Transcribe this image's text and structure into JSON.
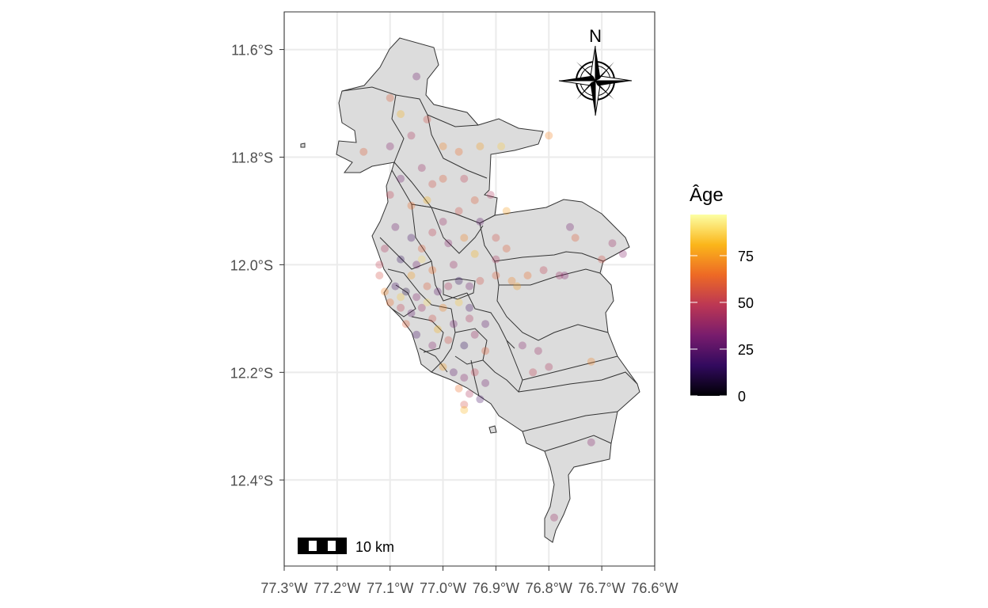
{
  "map": {
    "x_ticks": [
      "77.3°W",
      "77.2°W",
      "77.1°W",
      "77.0°W",
      "76.9°W",
      "76.8°W",
      "76.7°W",
      "76.6°W"
    ],
    "y_ticks": [
      "11.6°S",
      "11.8°S",
      "12.0°S",
      "12.2°S",
      "12.4°S"
    ],
    "north_label": "N",
    "scale_bar_label": "10 km",
    "region_fill": "#dcdcdc",
    "region_stroke": "#333333",
    "grid_color": "#ebebeb"
  },
  "legend": {
    "title": "Âge",
    "labels": [
      "0",
      "25",
      "50",
      "75"
    ],
    "values": [
      0,
      25,
      50,
      75
    ],
    "range": [
      0,
      97
    ],
    "colors": [
      "#000004",
      "#320a5e",
      "#781c6d",
      "#bc3754",
      "#ed6925",
      "#fbb61a",
      "#fcffa4"
    ]
  },
  "chart_data": {
    "type": "scatter",
    "xlabel": "",
    "ylabel": "",
    "x_unit": "degrees longitude",
    "y_unit": "degrees latitude",
    "xlim": [
      -77.3,
      -76.6
    ],
    "ylim": [
      -12.56,
      -11.53
    ],
    "color_variable": "Âge",
    "points": [
      [
        -77.05,
        -11.65,
        30
      ],
      [
        -77.03,
        -11.73,
        55
      ],
      [
        -77.1,
        -11.69,
        60
      ],
      [
        -77.08,
        -11.72,
        80
      ],
      [
        -77.06,
        -11.76,
        45
      ],
      [
        -77.1,
        -11.78,
        35
      ],
      [
        -77.0,
        -11.78,
        70
      ],
      [
        -76.97,
        -11.79,
        65
      ],
      [
        -76.93,
        -11.78,
        75
      ],
      [
        -76.89,
        -11.78,
        85
      ],
      [
        -76.8,
        -11.76,
        70
      ],
      [
        -77.04,
        -11.82,
        40
      ],
      [
        -77.02,
        -11.85,
        55
      ],
      [
        -77.0,
        -11.84,
        60
      ],
      [
        -76.96,
        -11.84,
        50
      ],
      [
        -77.15,
        -11.79,
        60
      ],
      [
        -77.08,
        -11.84,
        30
      ],
      [
        -77.1,
        -11.87,
        50
      ],
      [
        -77.06,
        -11.89,
        65
      ],
      [
        -77.03,
        -11.88,
        80
      ],
      [
        -77.0,
        -11.92,
        40
      ],
      [
        -76.97,
        -11.9,
        55
      ],
      [
        -76.94,
        -11.88,
        60
      ],
      [
        -76.91,
        -11.87,
        45
      ],
      [
        -76.88,
        -11.9,
        75
      ],
      [
        -77.09,
        -11.93,
        30
      ],
      [
        -77.06,
        -11.95,
        20
      ],
      [
        -77.04,
        -11.97,
        60
      ],
      [
        -77.02,
        -11.94,
        50
      ],
      [
        -76.99,
        -11.96,
        35
      ],
      [
        -76.96,
        -11.95,
        70
      ],
      [
        -76.93,
        -11.92,
        25
      ],
      [
        -76.9,
        -11.95,
        55
      ],
      [
        -77.11,
        -11.97,
        45
      ],
      [
        -77.08,
        -11.99,
        15
      ],
      [
        -77.05,
        -12.0,
        30
      ],
      [
        -77.02,
        -12.01,
        65
      ],
      [
        -76.98,
        -12.0,
        40
      ],
      [
        -76.94,
        -11.98,
        80
      ],
      [
        -76.88,
        -11.97,
        60
      ],
      [
        -77.12,
        -12.02,
        55
      ],
      [
        -77.09,
        -12.04,
        20
      ],
      [
        -77.07,
        -12.05,
        10
      ],
      [
        -77.05,
        -12.06,
        35
      ],
      [
        -77.03,
        -12.04,
        60
      ],
      [
        -77.01,
        -12.05,
        25
      ],
      [
        -76.99,
        -12.04,
        45
      ],
      [
        -76.97,
        -12.03,
        15
      ],
      [
        -76.95,
        -12.04,
        30
      ],
      [
        -76.93,
        -12.03,
        55
      ],
      [
        -76.9,
        -12.02,
        60
      ],
      [
        -76.87,
        -12.03,
        70
      ],
      [
        -76.84,
        -12.02,
        65
      ],
      [
        -76.81,
        -12.01,
        50
      ],
      [
        -76.78,
        -12.02,
        40
      ],
      [
        -77.1,
        -12.07,
        65
      ],
      [
        -77.08,
        -12.08,
        50
      ],
      [
        -77.06,
        -12.09,
        25
      ],
      [
        -77.04,
        -12.08,
        40
      ],
      [
        -77.02,
        -12.1,
        55
      ],
      [
        -77.0,
        -12.08,
        70
      ],
      [
        -76.98,
        -12.11,
        30
      ],
      [
        -76.95,
        -12.1,
        45
      ],
      [
        -76.92,
        -12.11,
        25
      ],
      [
        -77.07,
        -12.11,
        60
      ],
      [
        -77.05,
        -12.13,
        20
      ],
      [
        -77.02,
        -12.15,
        35
      ],
      [
        -76.99,
        -12.14,
        55
      ],
      [
        -76.96,
        -12.15,
        15
      ],
      [
        -76.94,
        -12.13,
        40
      ],
      [
        -76.92,
        -12.16,
        60
      ],
      [
        -77.0,
        -12.19,
        75
      ],
      [
        -76.98,
        -12.2,
        25
      ],
      [
        -76.96,
        -12.21,
        35
      ],
      [
        -76.94,
        -12.2,
        50
      ],
      [
        -76.92,
        -12.22,
        30
      ],
      [
        -76.97,
        -12.23,
        65
      ],
      [
        -76.95,
        -12.24,
        45
      ],
      [
        -76.93,
        -12.25,
        20
      ],
      [
        -76.96,
        -12.26,
        55
      ],
      [
        -76.85,
        -12.15,
        35
      ],
      [
        -76.82,
        -12.16,
        40
      ],
      [
        -76.8,
        -12.19,
        45
      ],
      [
        -76.83,
        -12.2,
        50
      ],
      [
        -76.77,
        -12.02,
        35
      ],
      [
        -76.7,
        -11.99,
        55
      ],
      [
        -76.75,
        -11.95,
        60
      ],
      [
        -76.68,
        -11.96,
        40
      ],
      [
        -76.66,
        -11.98,
        35
      ],
      [
        -76.72,
        -12.18,
        70
      ],
      [
        -76.72,
        -12.33,
        35
      ],
      [
        -76.79,
        -12.47,
        40
      ],
      [
        -76.76,
        -11.93,
        30
      ],
      [
        -76.9,
        -11.99,
        45
      ],
      [
        -77.11,
        -12.05,
        70
      ],
      [
        -77.08,
        -12.06,
        85
      ],
      [
        -77.03,
        -12.07,
        90
      ],
      [
        -77.01,
        -12.12,
        80
      ],
      [
        -76.97,
        -12.07,
        85
      ],
      [
        -76.95,
        -12.08,
        20
      ],
      [
        -77.04,
        -11.99,
        90
      ],
      [
        -77.06,
        -12.02,
        75
      ],
      [
        -76.96,
        -12.27,
        80
      ],
      [
        -76.86,
        -12.04,
        75
      ],
      [
        -77.12,
        -12.0,
        50
      ]
    ]
  }
}
